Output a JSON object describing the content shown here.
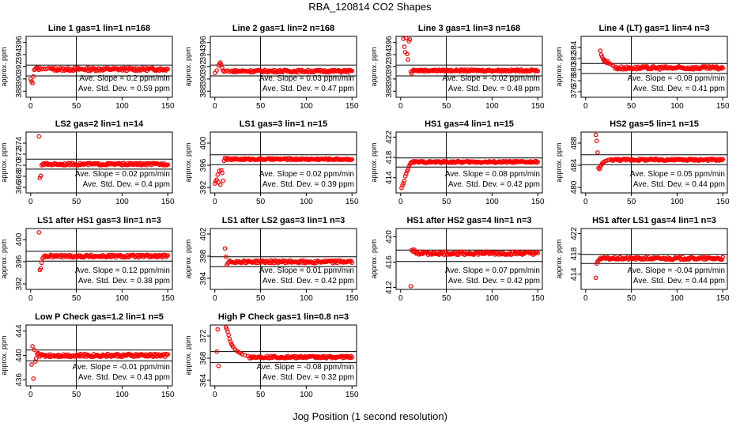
{
  "title": "RBA_120814  CO2 Shapes",
  "xlabel": "Jog Position (1 second resolution)",
  "chart_data": [
    {
      "type": "scatter",
      "title": "Line 1 gas=1 lin=1 n=168",
      "ylabel": "approx. ppm",
      "ylim": [
        387,
        397
      ],
      "yticks": [
        388,
        390,
        392,
        394,
        396
      ],
      "hlines": [
        390.5,
        392.3
      ],
      "xlim": [
        -5,
        155
      ],
      "xticks": [
        0,
        50,
        100,
        150
      ],
      "slope": "Ave. Slope =  0.2  ppm/min",
      "stddev": "Ave. Std. Dev. = 0.59  ppm",
      "points": [
        [
          0,
          390
        ],
        [
          1,
          389.6
        ],
        [
          2,
          389.3
        ],
        [
          3,
          390.4
        ],
        [
          4,
          391.5
        ],
        [
          5,
          391.6
        ],
        [
          6,
          391.8
        ],
        [
          7,
          391.9
        ],
        [
          8,
          391.7
        ],
        [
          9,
          391.5
        ],
        [
          10,
          391.8
        ],
        [
          12,
          391.6
        ],
        [
          14,
          391.7
        ],
        [
          16,
          391.6
        ],
        [
          18,
          391.7
        ],
        [
          20,
          391.8
        ]
      ],
      "base_start": 22,
      "base_end": 150,
      "base_value": 391.6,
      "noise": 0.25
    },
    {
      "type": "scatter",
      "title": "Line 2 gas=1 lin=2 n=168",
      "ylabel": "approx. ppm",
      "ylim": [
        387,
        397
      ],
      "yticks": [
        388,
        390,
        392,
        394,
        396
      ],
      "hlines": [
        390.5,
        392.3
      ],
      "xlim": [
        -5,
        155
      ],
      "xticks": [
        0,
        50,
        100,
        150
      ],
      "slope": "Ave. Slope =  0.03  ppm/min",
      "stddev": "Ave. Std. Dev. = 0.47  ppm",
      "points": [
        [
          0,
          391
        ],
        [
          2,
          391.4
        ],
        [
          4,
          392.2
        ],
        [
          5,
          392.5
        ],
        [
          6,
          392.7
        ],
        [
          7,
          392.3
        ],
        [
          8,
          391.8
        ],
        [
          9,
          391.4
        ],
        [
          10,
          391.2
        ],
        [
          12,
          391.3
        ],
        [
          14,
          391.4
        ],
        [
          16,
          391.2
        ]
      ],
      "base_start": 18,
      "base_end": 150,
      "base_value": 391.3,
      "noise": 0.2
    },
    {
      "type": "scatter",
      "title": "Line 3 gas=1 lin=3 n=168",
      "ylabel": "approx. ppm",
      "ylim": [
        387,
        397
      ],
      "yticks": [
        388,
        390,
        392,
        394,
        396
      ],
      "hlines": [
        390.5,
        392.3
      ],
      "xlim": [
        -5,
        155
      ],
      "xticks": [
        0,
        50,
        100,
        150
      ],
      "slope": "Ave. Slope =  -0.02  ppm/min",
      "stddev": "Ave. Std. Dev. = 0.48  ppm",
      "points": [
        [
          3,
          396.6
        ],
        [
          4,
          395.3
        ],
        [
          5,
          394.4
        ],
        [
          6,
          396.7
        ],
        [
          7,
          394.1
        ],
        [
          8,
          393.2
        ],
        [
          9,
          396.2
        ],
        [
          10,
          396.5
        ],
        [
          11,
          391.2
        ],
        [
          12,
          390.9
        ],
        [
          13,
          391.3
        ],
        [
          14,
          391.5
        ],
        [
          15,
          391.4
        ]
      ],
      "base_start": 16,
      "base_end": 150,
      "base_value": 391.4,
      "noise": 0.15
    },
    {
      "type": "scatter",
      "title": "Line 4 (LT) gas=1 lin=4 n=3",
      "ylabel": "approx. ppm",
      "ylim": [
        375,
        386
      ],
      "yticks": [
        376,
        378,
        380,
        382,
        384
      ],
      "hlines": [
        379.3,
        381.1
      ],
      "xlim": [
        -5,
        155
      ],
      "xticks": [
        0,
        50,
        100,
        150
      ],
      "slope": "Ave. Slope =  -0.08  ppm/min",
      "stddev": "Ave. Std. Dev. = 0.41  ppm",
      "points": [
        [
          16,
          383.4
        ],
        [
          17,
          382.7
        ],
        [
          18,
          382.3
        ],
        [
          19,
          381.9
        ],
        [
          20,
          381.6
        ],
        [
          21,
          381.7
        ],
        [
          22,
          381.4
        ],
        [
          23,
          381.2
        ],
        [
          24,
          381.5
        ],
        [
          25,
          381.2
        ],
        [
          26,
          381.1
        ],
        [
          28,
          380.9
        ],
        [
          30,
          380.7
        ]
      ],
      "base_start": 32,
      "base_end": 150,
      "base_value": 380.3,
      "noise": 0.3
    },
    {
      "type": "scatter",
      "title": "LS2 gas=2 lin=1 n=14",
      "ylabel": "approx. ppm",
      "ylim": [
        365,
        376
      ],
      "yticks": [
        366,
        368,
        370,
        372,
        374
      ],
      "hlines": [
        369.3,
        371.1
      ],
      "xlim": [
        -5,
        155
      ],
      "xticks": [
        0,
        50,
        100,
        150
      ],
      "slope": "Ave. Slope =  0.02  ppm/min",
      "stddev": "Ave. Std. Dev. = 0.4  ppm",
      "points": [
        [
          9,
          375.2
        ],
        [
          10,
          367.7
        ],
        [
          11,
          368.1
        ],
        [
          12,
          370.0
        ],
        [
          13,
          370.2
        ],
        [
          14,
          370.3
        ]
      ],
      "base_start": 15,
      "base_end": 150,
      "base_value": 370.2,
      "noise": 0.2
    },
    {
      "type": "scatter",
      "title": "LS1 gas=3 lin=1 n=15",
      "ylabel": "approx. ppm",
      "ylim": [
        391,
        402
      ],
      "yticks": [
        392,
        396,
        400
      ],
      "hlines": [
        396.1,
        397.9
      ],
      "xlim": [
        -5,
        155
      ],
      "xticks": [
        0,
        50,
        100,
        150
      ],
      "slope": "Ave. Slope =  0.02  ppm/min",
      "stddev": "Ave. Std. Dev. = 0.39  ppm",
      "points": [
        [
          0,
          392.7
        ],
        [
          1,
          393.1
        ],
        [
          2,
          393.4
        ],
        [
          3,
          394.3
        ],
        [
          4,
          392.9
        ],
        [
          5,
          395.0
        ],
        [
          6,
          392.5
        ],
        [
          7,
          395.1
        ],
        [
          8,
          394.6
        ],
        [
          9,
          393.2
        ],
        [
          10,
          396.8
        ],
        [
          11,
          397.3
        ],
        [
          12,
          397.1
        ],
        [
          13,
          397.3
        ]
      ],
      "base_start": 14,
      "base_end": 150,
      "base_value": 397.1,
      "noise": 0.15
    },
    {
      "type": "scatter",
      "title": "HS1 gas=4 lin=1 n=15",
      "ylabel": "approx. ppm",
      "ylim": [
        411,
        423
      ],
      "yticks": [
        414,
        418,
        422
      ],
      "hlines": [
        416.1,
        417.9
      ],
      "xlim": [
        -5,
        155
      ],
      "xticks": [
        0,
        50,
        100,
        150
      ],
      "slope": "Ave. Slope =  0.08  ppm/min",
      "stddev": "Ave. Std. Dev. = 0.42  ppm",
      "points": [
        [
          1,
          412
        ],
        [
          2,
          412.5
        ],
        [
          3,
          412.9
        ],
        [
          4,
          413.4
        ],
        [
          5,
          414.3
        ],
        [
          6,
          414.8
        ],
        [
          7,
          415.3
        ],
        [
          8,
          415.6
        ],
        [
          9,
          416.2
        ],
        [
          10,
          416.6
        ],
        [
          11,
          416.9
        ],
        [
          12,
          417.1
        ],
        [
          13,
          417.0
        ]
      ],
      "base_start": 14,
      "base_end": 150,
      "base_value": 417.1,
      "noise": 0.18
    },
    {
      "type": "scatter",
      "title": "HS2 gas=5 lin=1 n=15",
      "ylabel": "approx. ppm",
      "ylim": [
        479,
        490
      ],
      "yticks": [
        480,
        484,
        488
      ],
      "hlines": [
        484.1,
        485.9
      ],
      "xlim": [
        -5,
        155
      ],
      "xticks": [
        0,
        50,
        100,
        150
      ],
      "slope": "Ave. Slope =  0.05  ppm/min",
      "stddev": "Ave. Std. Dev. = 0.44  ppm",
      "points": [
        [
          11,
          489.5
        ],
        [
          12,
          488.4
        ],
        [
          13,
          486.3
        ],
        [
          14,
          483.5
        ],
        [
          15,
          483.3
        ],
        [
          16,
          483.7
        ],
        [
          17,
          484
        ],
        [
          18,
          484.3
        ],
        [
          19,
          484.5
        ],
        [
          20,
          484.6
        ],
        [
          22,
          484.8
        ],
        [
          24,
          484.9
        ],
        [
          26,
          485
        ]
      ],
      "base_start": 28,
      "base_end": 150,
      "base_value": 485.0,
      "noise": 0.18
    },
    {
      "type": "scatter",
      "title": "LS1 after HS1 gas=3 lin=1 n=3",
      "ylabel": "approx. ppm",
      "ylim": [
        391,
        402
      ],
      "yticks": [
        392,
        396,
        400
      ],
      "hlines": [
        396.1,
        397.9
      ],
      "xlim": [
        -5,
        155
      ],
      "xticks": [
        0,
        50,
        100,
        150
      ],
      "slope": "Ave. Slope =  0.12  ppm/min",
      "stddev": "Ave. Std. Dev. = 0.38  ppm",
      "points": [
        [
          9,
          401.3
        ],
        [
          10,
          394.5
        ],
        [
          11,
          394.8
        ],
        [
          12,
          395.8
        ],
        [
          13,
          396.6
        ],
        [
          14,
          396.8
        ],
        [
          15,
          397.1
        ],
        [
          16,
          396.9
        ]
      ],
      "base_start": 17,
      "base_end": 150,
      "base_value": 397.0,
      "noise": 0.25
    },
    {
      "type": "scatter",
      "title": "LS1 after LS2 gas=3 lin=1 n=3",
      "ylabel": "approx. ppm",
      "ylim": [
        392,
        403
      ],
      "yticks": [
        394,
        398,
        402
      ],
      "hlines": [
        396.1,
        397.9
      ],
      "xlim": [
        -5,
        155
      ],
      "xticks": [
        0,
        50,
        100,
        150
      ],
      "slope": "Ave. Slope =  0.01  ppm/min",
      "stddev": "Ave. Std. Dev. = 0.42  ppm",
      "points": [
        [
          11,
          399.4
        ],
        [
          12,
          397.9
        ],
        [
          13,
          396.4
        ],
        [
          14,
          396.7
        ],
        [
          15,
          396.9
        ],
        [
          16,
          397.2
        ]
      ],
      "base_start": 17,
      "base_end": 150,
      "base_value": 397.0,
      "noise": 0.25
    },
    {
      "type": "scatter",
      "title": "HS1 after HS2 gas=4 lin=1 n=3",
      "ylabel": "approx. ppm",
      "ylim": [
        411.7,
        421.3
      ],
      "yticks": [
        412,
        416,
        420
      ],
      "hlines": [
        416.1,
        417.9
      ],
      "xlim": [
        -5,
        155
      ],
      "xticks": [
        0,
        50,
        100,
        150
      ],
      "slope": "Ave. Slope =  0.07  ppm/min",
      "stddev": "Ave. Std. Dev. = 0.42  ppm",
      "points": [
        [
          11,
          412.2
        ],
        [
          12,
          417.9
        ],
        [
          13,
          417.7
        ],
        [
          14,
          418.0
        ],
        [
          15,
          417.6
        ],
        [
          16,
          417.8
        ]
      ],
      "base_start": 17,
      "base_end": 150,
      "base_value": 417.4,
      "noise": 0.25
    },
    {
      "type": "scatter",
      "title": "HS1 after LS1 gas=4 lin=1 n=3",
      "ylabel": "approx. ppm",
      "ylim": [
        411,
        423
      ],
      "yticks": [
        414,
        418,
        422
      ],
      "hlines": [
        416.1,
        417.9
      ],
      "xlim": [
        -5,
        155
      ],
      "xticks": [
        0,
        50,
        100,
        150
      ],
      "slope": "Ave. Slope =  -0.04  ppm/min",
      "stddev": "Ave. Std. Dev. = 0.44  ppm",
      "points": [
        [
          11,
          413.3
        ],
        [
          12,
          416.1
        ],
        [
          13,
          416.5
        ],
        [
          14,
          416.7
        ],
        [
          15,
          416.9
        ],
        [
          16,
          417.2
        ]
      ],
      "base_start": 17,
      "base_end": 150,
      "base_value": 417.1,
      "noise": 0.25
    },
    {
      "type": "scatter",
      "title": "Low P Check gas=1.2 lin=1 n=5",
      "ylabel": "approx. ppm",
      "ylim": [
        435,
        445
      ],
      "yticks": [
        436,
        440,
        444
      ],
      "hlines": [
        439.1,
        440.9
      ],
      "xlim": [
        -5,
        155
      ],
      "xticks": [
        0,
        50,
        100,
        150
      ],
      "slope": "Ave. Slope =  -0.01  ppm/min",
      "stddev": "Ave. Std. Dev. = 0.43  ppm",
      "points": [
        [
          1,
          438.5
        ],
        [
          2,
          441.5
        ],
        [
          3,
          436.2
        ],
        [
          4,
          440.9
        ],
        [
          5,
          439.0
        ],
        [
          6,
          439.5
        ],
        [
          7,
          440.2
        ],
        [
          8,
          440.4
        ],
        [
          9,
          440.3
        ]
      ],
      "base_start": 10,
      "base_end": 150,
      "base_value": 440.0,
      "noise": 0.25
    },
    {
      "type": "scatter",
      "title": "High P Check gas=1 lin=0.8 n=3",
      "ylabel": "approx. ppm",
      "ylim": [
        363,
        374
      ],
      "yticks": [
        364,
        368,
        372
      ],
      "hlines": [
        367.2,
        369.2
      ],
      "xlim": [
        -5,
        155
      ],
      "xticks": [
        0,
        50,
        100,
        150
      ],
      "slope": "Ave. Slope =  -0.08  ppm/min",
      "stddev": "Ave. Std. Dev. = 0.32  ppm",
      "points": [
        [
          2,
          369.2
        ],
        [
          3,
          373.2
        ],
        [
          4,
          366.6
        ],
        [
          12,
          373.6
        ],
        [
          13,
          373.3
        ],
        [
          14,
          372.8
        ],
        [
          15,
          372.2
        ],
        [
          16,
          371.5
        ],
        [
          17,
          371.0
        ],
        [
          18,
          370.6
        ],
        [
          19,
          370.3
        ],
        [
          20,
          370.0
        ],
        [
          22,
          369.6
        ],
        [
          24,
          369.3
        ],
        [
          26,
          369.1
        ],
        [
          28,
          368.9
        ],
        [
          30,
          368.7
        ],
        [
          33,
          368.5
        ],
        [
          36,
          368.4
        ]
      ],
      "base_start": 38,
      "base_end": 150,
      "base_value": 368.2,
      "noise": 0.2
    }
  ]
}
